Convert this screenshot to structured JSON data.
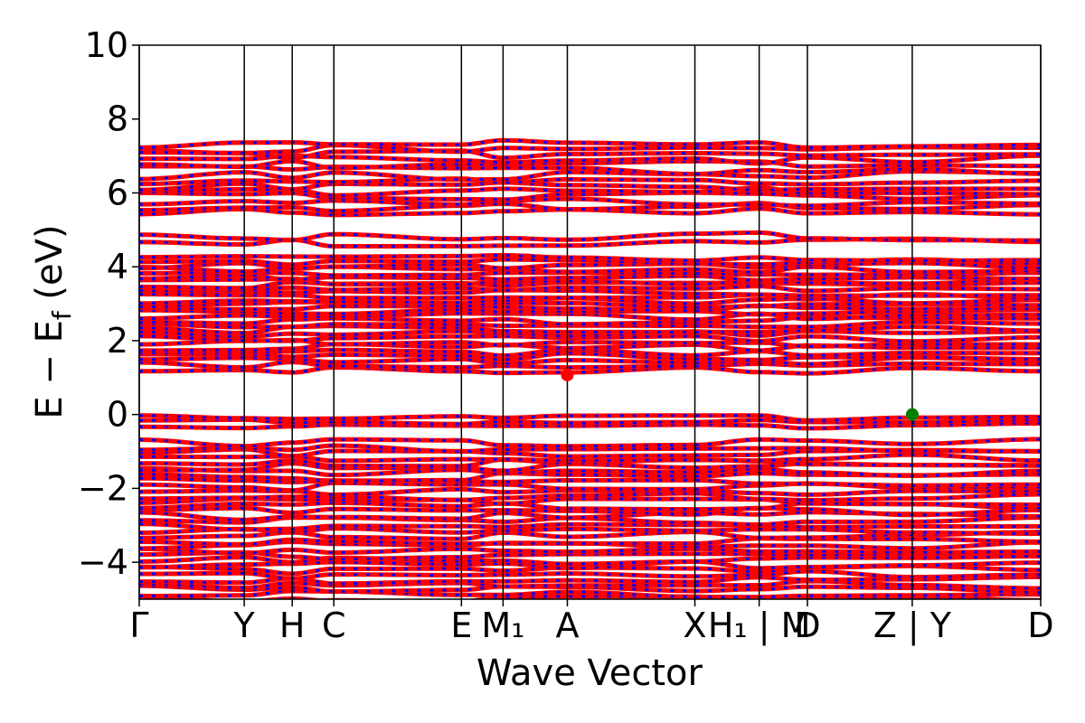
{
  "chart_data": {
    "type": "line",
    "title": "",
    "xlabel": "Wave Vector",
    "ylabel": "E − E_f (eV)",
    "ylabel_parts": {
      "main": "E − E",
      "sub": "f",
      "unit": " (eV)"
    },
    "ylim": [
      -5,
      10
    ],
    "yticks": [
      -4,
      -2,
      0,
      2,
      4,
      6,
      8,
      10
    ],
    "ytick_labels": [
      "−4",
      "−2",
      "0",
      "2",
      "4",
      "6",
      "8",
      "10"
    ],
    "xlim": [
      0,
      1
    ],
    "kpoints": [
      {
        "label": "Γ",
        "x": 0.0
      },
      {
        "label": "Y",
        "x": 0.1165
      },
      {
        "label": "H",
        "x": 0.1697
      },
      {
        "label": "C",
        "x": 0.2159
      },
      {
        "label": "E",
        "x": 0.3574
      },
      {
        "label": "M₁",
        "x": 0.4036
      },
      {
        "label": "A",
        "x": 0.4749
      },
      {
        "label": "X",
        "x": 0.6164
      },
      {
        "label": "H₁ | M",
        "x": 0.6877
      },
      {
        "label": "D",
        "x": 0.7412
      },
      {
        "label": "Z | Y",
        "x": 0.8575
      },
      {
        "label": "D",
        "x": 1.0
      }
    ],
    "grid": false,
    "series_colors": {
      "spin_up": "#ff0000",
      "spin_down": "#0000ff"
    },
    "markers": [
      {
        "x": 0.4749,
        "y": 1.07,
        "color": "#ff0000"
      },
      {
        "x": 0.8575,
        "y": 0.0,
        "color": "#008000"
      }
    ]
  }
}
